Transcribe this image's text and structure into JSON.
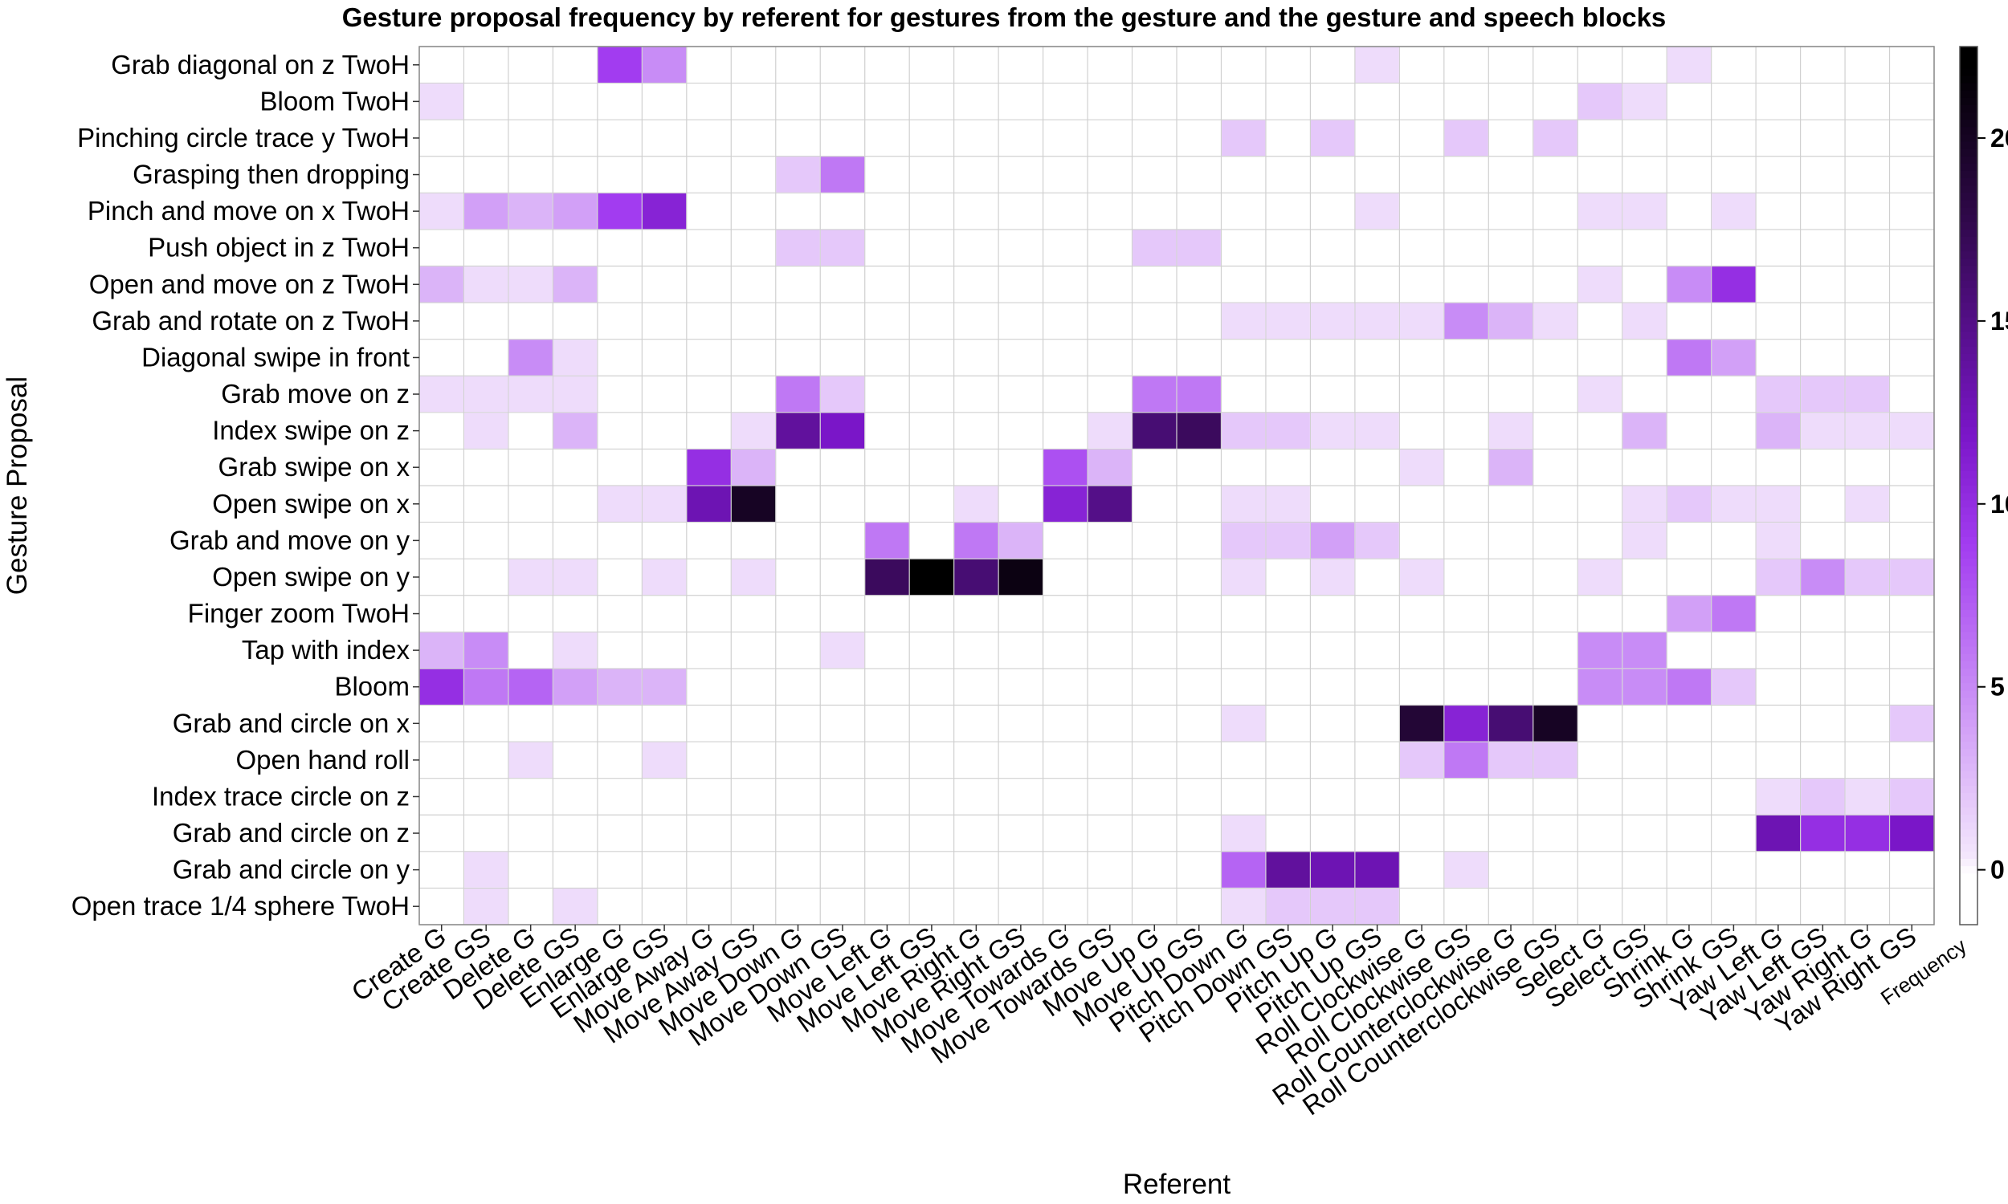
{
  "chart_data": {
    "type": "heatmap",
    "title": "Gesture proposal frequency by referent for gestures from the gesture and the gesture and speech blocks",
    "xlabel": "Referent",
    "ylabel": "Gesture Proposal",
    "legend": {
      "title": "Frequency",
      "ticks": [
        0,
        5,
        10,
        15,
        20
      ],
      "range": [
        -1.5,
        22.5
      ],
      "placement": "right"
    },
    "x": [
      "Create G",
      "Create GS",
      "Delete G",
      "Delete GS",
      "Enlarge G",
      "Enlarge GS",
      "Move Away G",
      "Move Away GS",
      "Move Down G",
      "Move Down GS",
      "Move Left G",
      "Move Left GS",
      "Move Right G",
      "Move Right GS",
      "Move Towards G",
      "Move Towards GS",
      "Move Up G",
      "Move Up GS",
      "Pitch Down G",
      "Pitch Down GS",
      "Pitch Up G",
      "Pitch Up GS",
      "Roll Clockwise G",
      "Roll Clockwise GS",
      "Roll Counterclockwise G",
      "Roll Counterclockwise GS",
      "Select G",
      "Select GS",
      "Shrink G",
      "Shrink GS",
      "Yaw Left G",
      "Yaw Left GS",
      "Yaw Right G",
      "Yaw Right GS"
    ],
    "y": [
      "Grab diagonal on z TwoH",
      "Bloom TwoH",
      "Pinching circle trace y TwoH",
      "Grasping then dropping",
      "Pinch and move on x TwoH",
      "Push object in z TwoH",
      "Open and move on z TwoH",
      "Grab and rotate on z TwoH",
      "Diagonal swipe in front",
      "Grab move on z",
      "Index swipe on z",
      "Grab swipe on x",
      "Open swipe on x",
      "Grab and move on y",
      "Open swipe on y",
      "Finger zoom TwoH",
      "Tap with index",
      "Bloom",
      "Grab and circle on x",
      "Open hand roll",
      "Index trace circle on z",
      "Grab and circle on z",
      "Grab and circle on y",
      "Open trace 1/4 sphere TwoH"
    ],
    "values": [
      [
        0,
        0,
        0,
        0,
        9,
        5,
        0,
        0,
        0,
        0,
        0,
        0,
        0,
        0,
        0,
        0,
        0,
        0,
        0,
        0,
        0,
        1,
        0,
        0,
        0,
        0,
        0,
        0,
        1,
        0,
        0,
        0,
        0,
        0
      ],
      [
        1,
        0,
        0,
        0,
        0,
        0,
        0,
        0,
        0,
        0,
        0,
        0,
        0,
        0,
        0,
        0,
        0,
        0,
        0,
        0,
        0,
        0,
        0,
        0,
        0,
        0,
        2,
        1,
        0,
        0,
        0,
        0,
        0,
        0
      ],
      [
        0,
        0,
        0,
        0,
        0,
        0,
        0,
        0,
        0,
        0,
        0,
        0,
        0,
        0,
        0,
        0,
        0,
        0,
        2,
        0,
        2,
        0,
        0,
        2,
        0,
        2,
        0,
        0,
        0,
        0,
        0,
        0,
        0,
        0
      ],
      [
        0,
        0,
        0,
        0,
        0,
        0,
        0,
        0,
        2,
        6,
        0,
        0,
        0,
        0,
        0,
        0,
        0,
        0,
        0,
        0,
        0,
        0,
        0,
        0,
        0,
        0,
        0,
        0,
        0,
        0,
        0,
        0,
        0,
        0
      ],
      [
        1,
        4,
        3,
        4,
        9,
        11,
        0,
        0,
        0,
        0,
        0,
        0,
        0,
        0,
        0,
        0,
        0,
        0,
        0,
        0,
        0,
        1,
        0,
        0,
        0,
        0,
        1,
        1,
        0,
        1,
        0,
        0,
        0,
        0
      ],
      [
        0,
        0,
        0,
        0,
        0,
        0,
        0,
        0,
        2,
        2,
        0,
        0,
        0,
        0,
        0,
        0,
        2,
        2,
        0,
        0,
        0,
        0,
        0,
        0,
        0,
        0,
        0,
        0,
        0,
        0,
        0,
        0,
        0,
        0
      ],
      [
        3,
        1,
        1,
        3,
        0,
        0,
        0,
        0,
        0,
        0,
        0,
        0,
        0,
        0,
        0,
        0,
        0,
        0,
        0,
        0,
        0,
        0,
        0,
        0,
        0,
        0,
        1,
        0,
        5,
        10,
        0,
        0,
        0,
        0
      ],
      [
        0,
        0,
        0,
        0,
        0,
        0,
        0,
        0,
        0,
        0,
        0,
        0,
        0,
        0,
        0,
        0,
        0,
        0,
        1,
        1,
        1,
        1,
        1,
        5,
        3,
        1,
        0,
        1,
        0,
        0,
        0,
        0,
        0,
        0
      ],
      [
        0,
        0,
        5,
        1,
        0,
        0,
        0,
        0,
        0,
        0,
        0,
        0,
        0,
        0,
        0,
        0,
        0,
        0,
        0,
        0,
        0,
        0,
        0,
        0,
        0,
        0,
        0,
        0,
        6,
        4,
        0,
        0,
        0,
        0
      ],
      [
        1,
        1,
        1,
        1,
        0,
        0,
        0,
        0,
        6,
        2,
        0,
        0,
        0,
        0,
        0,
        0,
        6,
        6,
        0,
        0,
        0,
        0,
        0,
        0,
        0,
        0,
        1,
        0,
        0,
        0,
        2,
        2,
        2,
        0
      ],
      [
        0,
        1,
        0,
        3,
        0,
        0,
        0,
        1,
        14,
        12,
        0,
        0,
        0,
        0,
        0,
        1,
        16,
        17,
        2,
        2,
        1,
        1,
        0,
        0,
        1,
        0,
        0,
        3,
        0,
        0,
        3,
        1,
        1,
        1
      ],
      [
        0,
        0,
        0,
        0,
        0,
        0,
        10,
        3,
        0,
        0,
        0,
        0,
        0,
        0,
        8,
        3,
        0,
        0,
        0,
        0,
        0,
        0,
        1,
        0,
        3,
        0,
        0,
        0,
        0,
        0,
        0,
        0,
        0,
        0
      ],
      [
        0,
        0,
        0,
        0,
        1,
        1,
        13,
        20,
        0,
        0,
        0,
        0,
        1,
        0,
        11,
        15,
        0,
        0,
        1,
        1,
        0,
        0,
        0,
        0,
        0,
        0,
        0,
        1,
        2,
        1,
        1,
        0,
        1,
        0
      ],
      [
        0,
        0,
        0,
        0,
        0,
        0,
        0,
        0,
        0,
        0,
        6,
        0,
        6,
        3,
        0,
        0,
        0,
        0,
        2,
        2,
        4,
        2,
        0,
        0,
        0,
        0,
        0,
        1,
        0,
        0,
        1,
        0,
        0,
        0
      ],
      [
        0,
        0,
        1,
        1,
        0,
        1,
        0,
        1,
        0,
        0,
        17,
        22,
        16,
        21,
        0,
        0,
        0,
        0,
        1,
        0,
        1,
        0,
        1,
        0,
        0,
        0,
        1,
        0,
        0,
        0,
        2,
        5,
        2,
        2
      ],
      [
        0,
        0,
        0,
        0,
        0,
        0,
        0,
        0,
        0,
        0,
        0,
        0,
        0,
        0,
        0,
        0,
        0,
        0,
        0,
        0,
        0,
        0,
        0,
        0,
        0,
        0,
        0,
        0,
        4,
        6,
        0,
        0,
        0,
        0
      ],
      [
        3,
        5,
        0,
        1,
        0,
        0,
        0,
        0,
        0,
        1,
        0,
        0,
        0,
        0,
        0,
        0,
        0,
        0,
        0,
        0,
        0,
        0,
        0,
        0,
        0,
        0,
        5,
        5,
        0,
        0,
        0,
        0,
        0,
        0
      ],
      [
        10,
        6,
        7,
        4,
        3,
        3,
        0,
        0,
        0,
        0,
        0,
        0,
        0,
        0,
        0,
        0,
        0,
        0,
        0,
        0,
        0,
        0,
        0,
        0,
        0,
        0,
        5,
        5,
        6,
        2,
        0,
        0,
        0,
        0
      ],
      [
        0,
        0,
        0,
        0,
        0,
        0,
        0,
        0,
        0,
        0,
        0,
        0,
        0,
        0,
        0,
        0,
        0,
        0,
        1,
        0,
        0,
        0,
        19,
        11,
        16,
        20,
        0,
        0,
        0,
        0,
        0,
        0,
        0,
        2
      ],
      [
        0,
        0,
        1,
        0,
        0,
        1,
        0,
        0,
        0,
        0,
        0,
        0,
        0,
        0,
        0,
        0,
        0,
        0,
        0,
        0,
        0,
        0,
        2,
        6,
        2,
        2,
        0,
        0,
        0,
        0,
        0,
        0,
        0,
        0
      ],
      [
        0,
        0,
        0,
        0,
        0,
        0,
        0,
        0,
        0,
        0,
        0,
        0,
        0,
        0,
        0,
        0,
        0,
        0,
        0,
        0,
        0,
        0,
        0,
        0,
        0,
        0,
        0,
        0,
        0,
        0,
        1,
        2,
        1,
        2
      ],
      [
        0,
        0,
        0,
        0,
        0,
        0,
        0,
        0,
        0,
        0,
        0,
        0,
        0,
        0,
        0,
        0,
        0,
        0,
        1,
        0,
        0,
        0,
        0,
        0,
        0,
        0,
        0,
        0,
        0,
        0,
        13,
        10,
        10,
        12
      ],
      [
        0,
        1,
        0,
        0,
        0,
        0,
        0,
        0,
        0,
        0,
        0,
        0,
        0,
        0,
        0,
        0,
        0,
        0,
        7,
        14,
        13,
        13,
        0,
        1,
        0,
        0,
        0,
        0,
        0,
        0,
        0,
        0,
        0,
        0
      ],
      [
        0,
        1,
        0,
        1,
        0,
        0,
        0,
        0,
        0,
        0,
        0,
        0,
        0,
        0,
        0,
        0,
        0,
        0,
        1,
        2,
        2,
        2,
        0,
        0,
        0,
        0,
        0,
        0,
        0,
        0,
        0,
        0,
        0,
        0
      ]
    ]
  },
  "colors": {
    "low": "#ffffff",
    "lightest": "#f3e6fc",
    "mid": "#a23cf0",
    "high": "#7a16c8",
    "dark": "#2e0848",
    "max": "#000000",
    "grid": "#d0d0d0",
    "border": "#888888"
  }
}
